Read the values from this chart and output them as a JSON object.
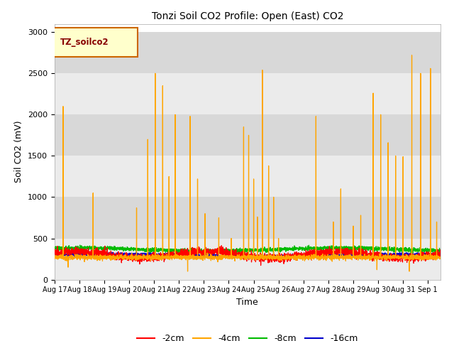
{
  "title": "Tonzi Soil CO2 Profile: Open (East) CO2",
  "ylabel": "Soil CO2 (mV)",
  "xlabel": "Time",
  "ylim": [
    0,
    3100
  ],
  "background_color": "#e8e8e8",
  "band_color_light": "#f0f0f0",
  "band_color_dark": "#d8d8d8",
  "legend_label": "TZ_soilco2",
  "series_labels": [
    "-2cm",
    "-4cm",
    "-8cm",
    "-16cm"
  ],
  "series_colors": [
    "#ff0000",
    "#ffa500",
    "#00bb00",
    "#0000cc"
  ],
  "xtick_labels": [
    "Aug 17",
    "Aug 18",
    "Aug 19",
    "Aug 20",
    "Aug 21",
    "Aug 22",
    "Aug 23",
    "Aug 24",
    "Aug 25",
    "Aug 26",
    "Aug 27",
    "Aug 28",
    "Aug 29",
    "Aug 30",
    "Aug 31",
    "Sep 1"
  ],
  "ytick_values": [
    0,
    500,
    1000,
    1500,
    2000,
    2500,
    3000
  ],
  "n_days": 15.5,
  "orange_spike_times": [
    0.35,
    1.55,
    3.3,
    3.75,
    4.05,
    4.35,
    4.6,
    4.85,
    5.45,
    5.75,
    6.05,
    6.6,
    7.1,
    7.6,
    7.8,
    8.0,
    8.15,
    8.35,
    8.6,
    8.8,
    9.0,
    10.5,
    11.2,
    11.5,
    12.0,
    12.3,
    12.8,
    13.1,
    13.4,
    13.7,
    14.0,
    14.35,
    14.7,
    15.1,
    15.35
  ],
  "orange_spike_heights": [
    2100,
    1050,
    870,
    1700,
    2500,
    2350,
    1250,
    2000,
    1980,
    1220,
    800,
    750,
    500,
    1850,
    1750,
    1220,
    760,
    2540,
    1380,
    1000,
    500,
    1980,
    700,
    1100,
    650,
    780,
    2260,
    2000,
    1660,
    1500,
    1490,
    2720,
    2500,
    2560,
    700
  ],
  "orange_dip_times": [
    0.55,
    5.35,
    12.95,
    14.25
  ],
  "orange_dip_vals": [
    150,
    100,
    120,
    100
  ]
}
